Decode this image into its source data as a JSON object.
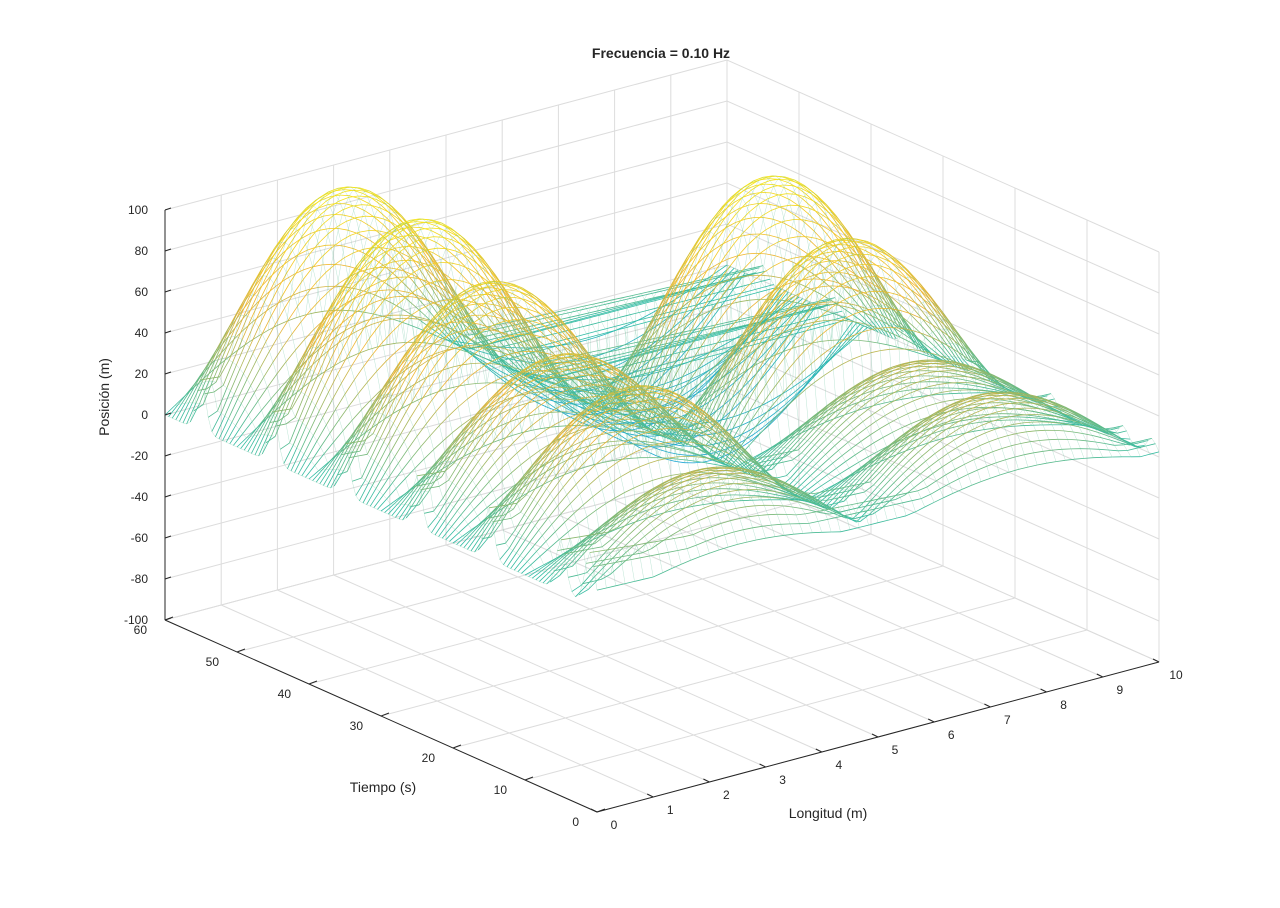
{
  "chart_data": {
    "type": "surface",
    "title": "Frecuencia = 0.10 Hz",
    "xlabel": "Longitud (m)",
    "ylabel": "Tiempo (s)",
    "zlabel": "Posición (m)",
    "xlim": [
      0,
      10
    ],
    "ylim": [
      0,
      60
    ],
    "zlim": [
      -100,
      100
    ],
    "xticks": [
      "0",
      "1",
      "2",
      "3",
      "4",
      "5",
      "6",
      "7",
      "8",
      "9",
      "10"
    ],
    "yticks": [
      "0",
      "10",
      "20",
      "30",
      "40",
      "50",
      "60"
    ],
    "zticks": [
      "100",
      "80",
      "60",
      "40",
      "20",
      "0",
      "-20",
      "-40",
      "-60",
      "-80",
      "-100"
    ],
    "grid": true,
    "colormap": [
      "#0f5bd9",
      "#1aa3db",
      "#2cbca7",
      "#f0b433",
      "#f6e51b"
    ],
    "frequency_hz": 0.1,
    "ridge_times_s": [
      1,
      5,
      15,
      25,
      35,
      45,
      55
    ],
    "ridge_peaks_m": [
      25,
      25,
      25,
      25,
      25,
      25,
      25
    ],
    "standing_wave_peaks_m": [
      {
        "t": 5,
        "x": 2.5,
        "z": 40
      },
      {
        "t": 5,
        "x": 7.5,
        "z": 40
      },
      {
        "t": 15,
        "x": 2.5,
        "z": 65
      },
      {
        "t": 15,
        "x": 7.5,
        "z": 40
      },
      {
        "t": 25,
        "x": 2.5,
        "z": 65
      },
      {
        "t": 25,
        "x": 7.5,
        "z": 85
      },
      {
        "t": 35,
        "x": 2.5,
        "z": 85
      },
      {
        "t": 35,
        "x": 7.5,
        "z": 100
      },
      {
        "t": 45,
        "x": 2.5,
        "z": 100
      },
      {
        "t": 55,
        "x": 2.5,
        "z": 100
      }
    ],
    "standing_wave_troughs_m": [
      {
        "t": 45,
        "x": 7.5,
        "z": -60
      },
      {
        "t": 55,
        "x": 7.5,
        "z": -60
      }
    ]
  }
}
